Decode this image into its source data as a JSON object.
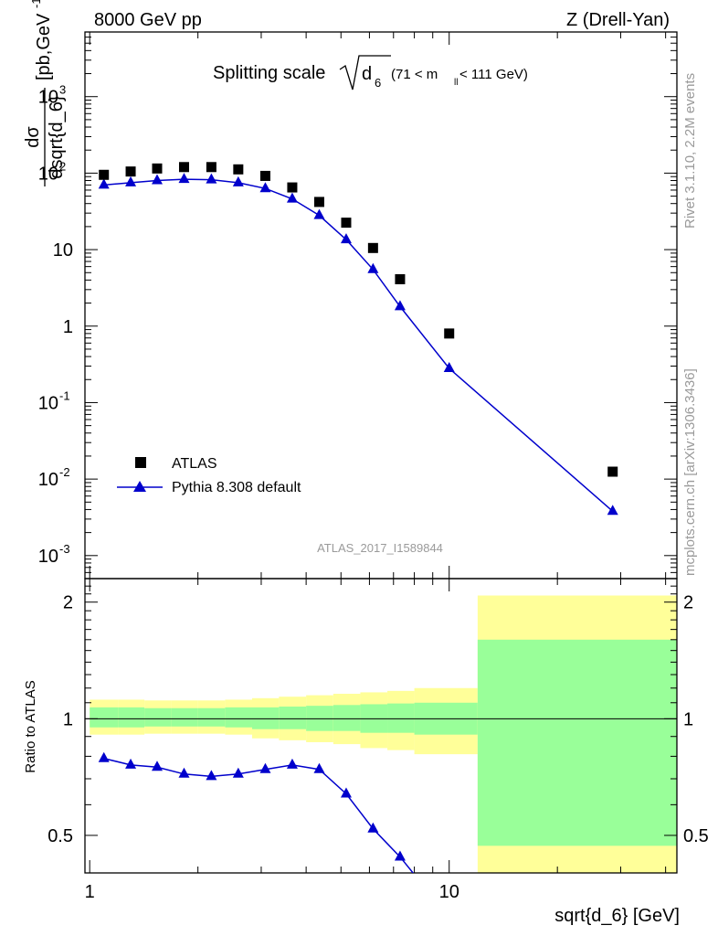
{
  "header": {
    "left": "8000 GeV pp",
    "right": "Z (Drell-Yan)"
  },
  "plot_title": {
    "prefix": "Splitting scale",
    "symbol": "d",
    "subscript": "6",
    "cut_open": "(71 < m",
    "cut_sub": "ll",
    "cut_close": " < 111 GeV)"
  },
  "side_labels": {
    "rivet": "Rivet 3.1.10,  2.2M events",
    "mcplots": "mcplots.cern.ch [arXiv:1306.3436]"
  },
  "watermark": "ATLAS_2017_I1589844",
  "legend": {
    "data_label": "ATLAS",
    "mc_label": "Pythia 8.308 default"
  },
  "colors": {
    "data": "#000000",
    "mc": "#0000cc",
    "band_inner": "#99ff99",
    "band_outer": "#ffff99"
  },
  "y_axis_label_main": {
    "num": "dσ",
    "den": "dsqrt{d_6}",
    "unit_open": "[pb,GeV",
    "unit_exp": "-1",
    "unit_close": "]"
  },
  "y_axis_label_ratio": "Ratio to ATLAS",
  "x_axis_label": "sqrt{d_6} [GeV]",
  "main_y_ticks": [
    {
      "base": "10",
      "exp": "-3"
    },
    {
      "base": "10",
      "exp": "-2"
    },
    {
      "base": "10",
      "exp": "-1"
    },
    {
      "base": "1",
      "exp": ""
    },
    {
      "base": "10",
      "exp": ""
    },
    {
      "base": "10",
      "exp": "2"
    },
    {
      "base": "10",
      "exp": "3"
    }
  ],
  "ratio_y_ticks": [
    "0.5",
    "1",
    "2"
  ],
  "x_ticks": [
    "1",
    "10"
  ],
  "chart_data": {
    "type": "scatter",
    "x_scale": "log",
    "y_scale": "log",
    "xlim": [
      0.97,
      43
    ],
    "ylim": [
      0.0005,
      7000
    ],
    "ratio_ylim": [
      0.4,
      2.3
    ],
    "xlabel": "sqrt{d_6} [GeV]",
    "ylabel": "dσ/dsqrt{d_6} [pb,GeV^-1]",
    "series": [
      {
        "name": "ATLAS",
        "marker": "square",
        "x": [
          1.095,
          1.3,
          1.54,
          1.83,
          2.18,
          2.59,
          3.08,
          3.66,
          4.35,
          5.17,
          6.14,
          7.3,
          10.0,
          28.5
        ],
        "y": [
          95,
          105,
          115,
          120,
          120,
          112,
          92,
          65,
          42,
          22.5,
          10.5,
          4.1,
          0.8,
          0.0125
        ]
      },
      {
        "name": "Pythia 8.308 default",
        "marker": "triangle",
        "x": [
          1.095,
          1.3,
          1.54,
          1.83,
          2.18,
          2.59,
          3.08,
          3.66,
          4.35,
          5.17,
          6.14,
          7.3,
          10.0,
          28.5
        ],
        "y": [
          70,
          75,
          80,
          83,
          82,
          75,
          63,
          46,
          28,
          13.5,
          5.5,
          1.8,
          0.28,
          0.0038
        ]
      }
    ],
    "ratio": {
      "x": [
        1.095,
        1.3,
        1.54,
        1.83,
        2.18,
        2.59,
        3.08,
        3.66,
        4.35,
        5.17,
        6.14,
        7.3,
        8.7,
        10.0
      ],
      "y": [
        0.79,
        0.76,
        0.75,
        0.72,
        0.71,
        0.72,
        0.74,
        0.76,
        0.74,
        0.64,
        0.52,
        0.44,
        0.36,
        0.3
      ]
    },
    "bands": [
      {
        "x0": 1.0,
        "x1": 1.2,
        "inner": [
          0.95,
          1.07
        ],
        "outer": [
          0.91,
          1.12
        ]
      },
      {
        "x0": 1.2,
        "x1": 1.42,
        "inner": [
          0.95,
          1.07
        ],
        "outer": [
          0.91,
          1.12
        ]
      },
      {
        "x0": 1.42,
        "x1": 1.69,
        "inner": [
          0.955,
          1.065
        ],
        "outer": [
          0.915,
          1.115
        ]
      },
      {
        "x0": 1.69,
        "x1": 2.0,
        "inner": [
          0.955,
          1.065
        ],
        "outer": [
          0.915,
          1.115
        ]
      },
      {
        "x0": 2.0,
        "x1": 2.38,
        "inner": [
          0.955,
          1.065
        ],
        "outer": [
          0.915,
          1.115
        ]
      },
      {
        "x0": 2.38,
        "x1": 2.83,
        "inner": [
          0.95,
          1.07
        ],
        "outer": [
          0.91,
          1.12
        ]
      },
      {
        "x0": 2.83,
        "x1": 3.36,
        "inner": [
          0.94,
          1.07
        ],
        "outer": [
          0.89,
          1.13
        ]
      },
      {
        "x0": 3.36,
        "x1": 4.0,
        "inner": [
          0.94,
          1.075
        ],
        "outer": [
          0.88,
          1.14
        ]
      },
      {
        "x0": 4.0,
        "x1": 4.76,
        "inner": [
          0.93,
          1.08
        ],
        "outer": [
          0.87,
          1.15
        ]
      },
      {
        "x0": 4.76,
        "x1": 5.66,
        "inner": [
          0.93,
          1.085
        ],
        "outer": [
          0.86,
          1.16
        ]
      },
      {
        "x0": 5.66,
        "x1": 6.73,
        "inner": [
          0.92,
          1.09
        ],
        "outer": [
          0.84,
          1.17
        ]
      },
      {
        "x0": 6.73,
        "x1": 8.0,
        "inner": [
          0.92,
          1.095
        ],
        "outer": [
          0.83,
          1.18
        ]
      },
      {
        "x0": 8.0,
        "x1": 12.0,
        "inner": [
          0.91,
          1.1
        ],
        "outer": [
          0.81,
          1.2
        ]
      },
      {
        "x0": 12.0,
        "x1": 43.0,
        "inner": [
          0.47,
          1.6
        ],
        "outer": [
          0.4,
          2.08
        ]
      }
    ]
  }
}
